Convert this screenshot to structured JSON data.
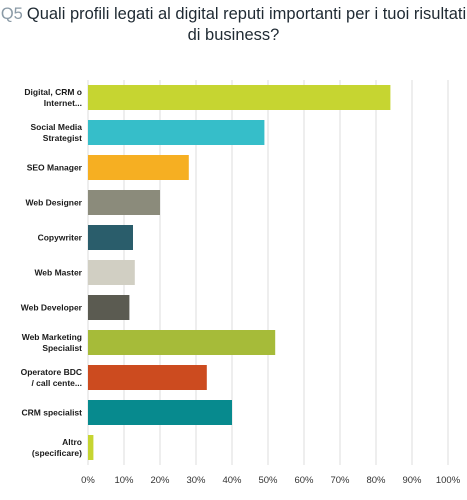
{
  "question": {
    "number": "Q5",
    "text": "Quali profili legati al digital reputi importanti per i tuoi risultati di business?"
  },
  "chart_data": {
    "type": "bar",
    "orientation": "horizontal",
    "title": "Q5 Quali profili legati al digital reputi importanti per i tuoi risultati di business?",
    "categories": [
      [
        "Digital, CRM o",
        "Internet..."
      ],
      [
        "Social Media",
        "Strategist"
      ],
      [
        "SEO Manager"
      ],
      [
        "Web Designer"
      ],
      [
        "Copywriter"
      ],
      [
        "Web Master"
      ],
      [
        "Web Developer"
      ],
      [
        "Web Marketing",
        "Specialist"
      ],
      [
        "Operatore BDC",
        "/ call cente..."
      ],
      [
        "CRM specialist"
      ],
      [
        "Altro",
        "(specificare)"
      ]
    ],
    "values": [
      84,
      49,
      28,
      20,
      12.5,
      13,
      11.5,
      52,
      33,
      40,
      1.5
    ],
    "colors": [
      "#c6d531",
      "#36bec9",
      "#f6af22",
      "#8b8b7b",
      "#2a5d6b",
      "#d1cfc3",
      "#5b5b51",
      "#a6bb39",
      "#cc4b1f",
      "#078a8e",
      "#c6d531"
    ],
    "xlim": [
      0,
      100
    ],
    "xticks": [
      "0%",
      "10%",
      "20%",
      "30%",
      "40%",
      "50%",
      "60%",
      "70%",
      "80%",
      "90%",
      "100%"
    ],
    "grid": true,
    "legend": "none"
  }
}
